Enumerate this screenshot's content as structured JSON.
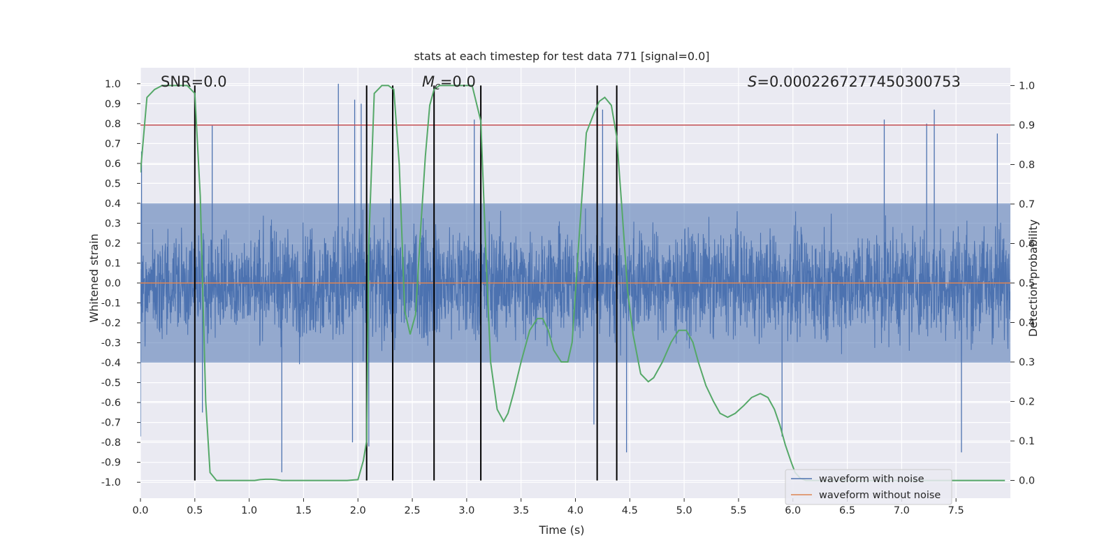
{
  "chart_data": {
    "type": "line",
    "title": "stats at each timestep for test data 771 [signal=0.0]",
    "xlabel": "Time (s)",
    "ylabel_left": "Whitened strain",
    "ylabel_right": "Detection probability",
    "xlim": [
      0.0,
      8.0
    ],
    "ylim_left": [
      -1.08,
      1.08
    ],
    "ylim_right": [
      -0.045,
      1.045
    ],
    "x_ticks": [
      0.0,
      0.5,
      1.0,
      1.5,
      2.0,
      2.5,
      3.0,
      3.5,
      4.0,
      4.5,
      5.0,
      5.5,
      6.0,
      6.5,
      7.0,
      7.5
    ],
    "x_tick_labels": [
      "0.0",
      "0.5",
      "1.0",
      "1.5",
      "2.0",
      "2.5",
      "3.0",
      "3.5",
      "4.0",
      "4.5",
      "5.0",
      "5.5",
      "6.0",
      "6.5",
      "7.0",
      "7.5"
    ],
    "y_left_ticks": [
      1.0,
      0.9,
      0.8,
      0.7,
      0.6,
      0.5,
      0.4,
      0.3,
      0.2,
      0.1,
      0.0,
      -0.1,
      -0.2,
      -0.3,
      -0.4,
      -0.5,
      -0.6,
      -0.7,
      -0.8,
      -0.9,
      -1.0
    ],
    "y_left_tick_labels": [
      "1.0",
      "0.9",
      "0.8",
      "0.7",
      "0.6",
      "0.5",
      "0.4",
      "0.3",
      "0.2",
      "0.1",
      "0.0",
      "-0.1",
      "-0.2",
      "-0.3",
      "-0.4",
      "-0.5",
      "-0.6",
      "-0.7",
      "-0.8",
      "-0.9",
      "-1.0"
    ],
    "y_right_ticks": [
      1.0,
      0.9,
      0.8,
      0.7,
      0.6,
      0.5,
      0.4,
      0.3,
      0.2,
      0.1,
      0.0
    ],
    "y_right_tick_labels": [
      "1.0",
      "0.9",
      "0.8",
      "0.7",
      "0.6",
      "0.5",
      "0.4",
      "0.3",
      "0.2",
      "0.1",
      "0.0"
    ],
    "annotations": {
      "snr": "SNR=0.0",
      "mc_symbol": "M",
      "mc_sub": "c",
      "mc_value": "=0.0",
      "s_symbol": "S",
      "s_value": "=0.0002267277450300753"
    },
    "threshold": {
      "value": 0.9,
      "axis": "right",
      "color": "#c44e52"
    },
    "noise_profile": {
      "x": [
        0.0,
        0.5,
        1.0,
        1.5,
        2.0,
        2.5,
        3.0,
        3.5,
        4.0,
        4.5,
        5.0,
        5.5,
        6.0,
        6.5,
        7.0,
        7.5,
        8.0
      ],
      "envelope": [
        0.5,
        0.5,
        0.45,
        0.52,
        0.58,
        0.52,
        0.55,
        0.48,
        0.5,
        0.5,
        0.48,
        0.48,
        0.5,
        0.5,
        0.52,
        0.55,
        0.52
      ],
      "extremes": [
        {
          "x": 0.0,
          "y": -0.77
        },
        {
          "x": 0.01,
          "y": 0.66
        },
        {
          "x": 0.57,
          "y": -0.65
        },
        {
          "x": 0.66,
          "y": 0.79
        },
        {
          "x": 1.3,
          "y": -0.95
        },
        {
          "x": 1.82,
          "y": 1.0
        },
        {
          "x": 1.97,
          "y": 0.92
        },
        {
          "x": 1.95,
          "y": -0.8
        },
        {
          "x": 2.03,
          "y": 0.9
        },
        {
          "x": 2.1,
          "y": -0.82
        },
        {
          "x": 3.07,
          "y": 0.82
        },
        {
          "x": 4.25,
          "y": 0.87
        },
        {
          "x": 4.17,
          "y": -0.71
        },
        {
          "x": 4.47,
          "y": -0.85
        },
        {
          "x": 7.23,
          "y": 0.8
        },
        {
          "x": 7.3,
          "y": 0.87
        },
        {
          "x": 7.55,
          "y": -0.85
        },
        {
          "x": 7.88,
          "y": 0.75
        },
        {
          "x": 6.84,
          "y": 0.82
        },
        {
          "x": 5.9,
          "y": -0.77
        }
      ]
    },
    "series": [
      {
        "name": "waveform with noise",
        "color": "#4c72b0",
        "axis": "left",
        "kind": "dense noise (~0.5 typical amplitude)"
      },
      {
        "name": "waveform without noise",
        "color": "#dd8452",
        "axis": "left",
        "constant": 0.0
      },
      {
        "name": "detection probability",
        "color": "#55a868",
        "axis": "right",
        "x": [
          0.0,
          0.06,
          0.13,
          0.2,
          0.27,
          0.35,
          0.43,
          0.5,
          0.55,
          0.6,
          0.64,
          0.7,
          0.8,
          0.9,
          1.0,
          1.05,
          1.1,
          1.15,
          1.2,
          1.25,
          1.3,
          1.4,
          1.5,
          1.6,
          1.7,
          1.8,
          1.9,
          2.0,
          2.05,
          2.08,
          2.1,
          2.15,
          2.22,
          2.28,
          2.33,
          2.38,
          2.43,
          2.48,
          2.53,
          2.58,
          2.62,
          2.66,
          2.7,
          2.75,
          2.85,
          2.95,
          3.05,
          3.13,
          3.18,
          3.22,
          3.28,
          3.34,
          3.38,
          3.43,
          3.5,
          3.58,
          3.65,
          3.7,
          3.75,
          3.8,
          3.87,
          3.93,
          3.97,
          4.03,
          4.1,
          4.17,
          4.22,
          4.27,
          4.33,
          4.38,
          4.43,
          4.48,
          4.53,
          4.6,
          4.67,
          4.72,
          4.8,
          4.88,
          4.95,
          5.02,
          5.08,
          5.13,
          5.2,
          5.27,
          5.33,
          5.4,
          5.47,
          5.55,
          5.62,
          5.7,
          5.77,
          5.83,
          5.88,
          5.93,
          5.98,
          6.02,
          6.07,
          6.12,
          6.17,
          6.25,
          6.5,
          7.0,
          7.5,
          7.95
        ],
        "y": [
          0.78,
          0.97,
          0.99,
          1.0,
          1.0,
          1.0,
          1.0,
          0.98,
          0.72,
          0.2,
          0.02,
          0.0,
          0.0,
          0.0,
          0.0,
          0.0,
          0.002,
          0.003,
          0.003,
          0.002,
          0.0,
          0.0,
          0.0,
          0.0,
          0.0,
          0.0,
          0.0,
          0.002,
          0.05,
          0.1,
          0.6,
          0.98,
          1.0,
          1.0,
          0.99,
          0.8,
          0.43,
          0.37,
          0.42,
          0.65,
          0.82,
          0.95,
          0.99,
          1.0,
          1.0,
          1.0,
          1.0,
          0.91,
          0.55,
          0.3,
          0.18,
          0.15,
          0.17,
          0.22,
          0.3,
          0.38,
          0.41,
          0.41,
          0.38,
          0.33,
          0.3,
          0.3,
          0.35,
          0.6,
          0.88,
          0.93,
          0.96,
          0.97,
          0.95,
          0.87,
          0.68,
          0.48,
          0.37,
          0.27,
          0.25,
          0.26,
          0.3,
          0.35,
          0.38,
          0.38,
          0.35,
          0.3,
          0.24,
          0.2,
          0.17,
          0.16,
          0.17,
          0.19,
          0.21,
          0.22,
          0.21,
          0.18,
          0.14,
          0.09,
          0.05,
          0.02,
          0.005,
          0.0,
          0.0,
          0.0,
          0.0,
          0.0,
          0.0,
          0.0
        ]
      }
    ],
    "vertical_lines": [
      0.5,
      2.08,
      2.32,
      2.7,
      3.13,
      4.2,
      4.38
    ],
    "legend": {
      "position": "lower right",
      "entries": [
        {
          "label": "waveform with noise",
          "color": "#4c72b0"
        },
        {
          "label": "waveform without noise",
          "color": "#dd8452"
        }
      ]
    },
    "style": {
      "background": "#eaeaf2",
      "grid": true,
      "grid_color": "#ffffff"
    }
  }
}
